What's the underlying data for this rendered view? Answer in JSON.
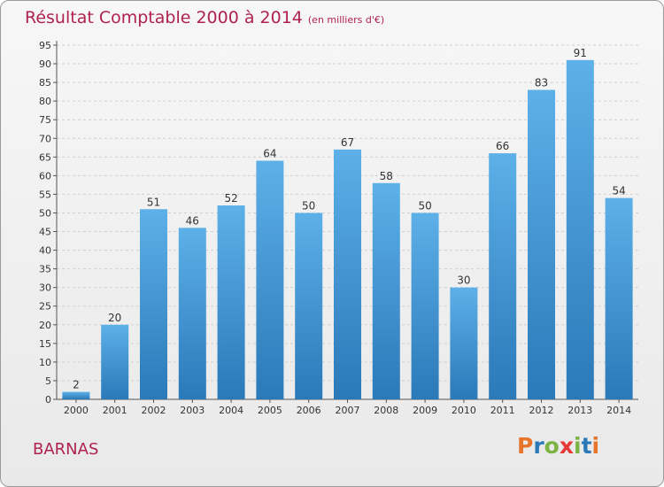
{
  "header": {
    "title": "Résultat Comptable 2000 à 2014",
    "unit": "(en milliers d'€)"
  },
  "footer": {
    "commune": "BARNAS",
    "logo_text": "Proxiti"
  },
  "colors": {
    "title": "#b0224e",
    "bar_top": "#5db0e8",
    "bar_bottom": "#2a79b9",
    "grid": "#cfcfcf",
    "logo_letters": [
      "#e8742a",
      "#2a79b9",
      "#7cb342",
      "#e53935",
      "#7cb342",
      "#2a79b9",
      "#e8742a"
    ]
  },
  "chart_data": {
    "type": "bar",
    "title": "Résultat Comptable 2000 à 2014",
    "subtitle": "(en milliers d'€)",
    "categories": [
      "2000",
      "2001",
      "2002",
      "2003",
      "2004",
      "2005",
      "2006",
      "2007",
      "2008",
      "2009",
      "2010",
      "2011",
      "2012",
      "2013",
      "2014"
    ],
    "values": [
      2,
      20,
      51,
      46,
      52,
      64,
      50,
      67,
      58,
      50,
      30,
      66,
      83,
      91,
      54
    ],
    "ylim": [
      0,
      95
    ],
    "yticks": [
      0,
      5,
      10,
      15,
      20,
      25,
      30,
      35,
      40,
      45,
      50,
      55,
      60,
      65,
      70,
      75,
      80,
      85,
      90,
      95
    ],
    "xlabel": "",
    "ylabel": "",
    "grid": true,
    "data_labels": true
  }
}
